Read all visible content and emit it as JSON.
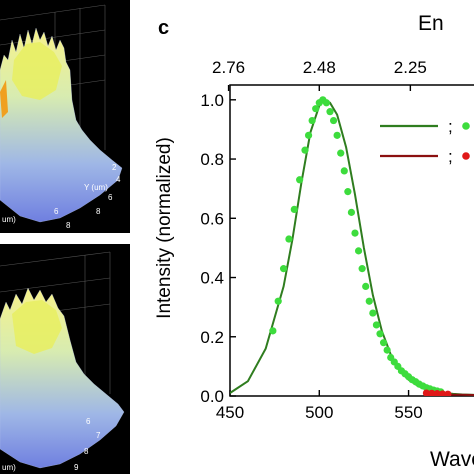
{
  "panel_a": {
    "y_label": "Y (um)",
    "x_label": "um)",
    "y_ticks": [
      "2",
      "4",
      "6",
      "8"
    ],
    "x_ticks": [
      "6",
      "8"
    ]
  },
  "panel_b": {
    "x_label": "um)",
    "x_ticks": [
      "6",
      "7",
      "8",
      "9"
    ]
  },
  "chart_data": {
    "type": "line",
    "panel_label": "c",
    "top_axis_label": "En",
    "xlabel": "Wave",
    "ylabel": "Intensity (normalized)",
    "xlim": [
      450,
      590
    ],
    "ylim": [
      0,
      1.05
    ],
    "x_ticks": [
      450,
      500,
      550
    ],
    "x_tick_labels": [
      "450",
      "500",
      "550"
    ],
    "y_ticks": [
      0.0,
      0.2,
      0.4,
      0.6,
      0.8,
      1.0
    ],
    "y_tick_labels": [
      "0.0",
      "0.2",
      "0.4",
      "0.6",
      "0.8",
      "1.0"
    ],
    "top_ticks_nm": [
      449.2,
      500,
      551
    ],
    "top_tick_labels": [
      "2.76",
      "2.48",
      "2.25"
    ],
    "legend": {
      "placement": "top-right",
      "entries": [
        {
          "line_color": "#2f7d1f",
          "marker_color": "#3ddc3d",
          "separator": ";"
        },
        {
          "line_color": "#8b1010",
          "marker_color": "#e01818",
          "separator": ";"
        }
      ]
    },
    "series": [
      {
        "style": "line",
        "color": "#2f7d1f",
        "x": [
          450,
          460,
          470,
          480,
          485,
          490,
          495,
          500,
          503,
          506,
          510,
          515,
          520,
          525,
          530,
          535,
          540,
          545,
          550,
          555,
          560,
          565,
          570,
          575,
          580,
          590
        ],
        "y": [
          0.01,
          0.05,
          0.16,
          0.37,
          0.53,
          0.72,
          0.89,
          0.98,
          1.0,
          0.99,
          0.95,
          0.84,
          0.68,
          0.5,
          0.34,
          0.22,
          0.14,
          0.085,
          0.055,
          0.035,
          0.022,
          0.014,
          0.01,
          0.007,
          0.005,
          0.003
        ]
      },
      {
        "style": "markers",
        "color": "#3ddc3d",
        "x": [
          474,
          477,
          480,
          483,
          486,
          489,
          492,
          494,
          496,
          498,
          500,
          502,
          504,
          506,
          508,
          510,
          512,
          514,
          516,
          518,
          520,
          522,
          524,
          526,
          528,
          530,
          532,
          534,
          536,
          538,
          540,
          542,
          544,
          546,
          548,
          550,
          552,
          554,
          556,
          558,
          560,
          562,
          564,
          566,
          568
        ],
        "y": [
          0.22,
          0.32,
          0.43,
          0.53,
          0.63,
          0.73,
          0.83,
          0.88,
          0.93,
          0.97,
          0.99,
          1.0,
          0.99,
          0.96,
          0.93,
          0.88,
          0.82,
          0.76,
          0.69,
          0.62,
          0.55,
          0.49,
          0.43,
          0.37,
          0.32,
          0.28,
          0.24,
          0.21,
          0.18,
          0.155,
          0.13,
          0.115,
          0.1,
          0.085,
          0.075,
          0.065,
          0.055,
          0.048,
          0.04,
          0.034,
          0.028,
          0.024,
          0.02,
          0.017,
          0.014
        ]
      },
      {
        "style": "line",
        "color": "#8b1010",
        "x": [
          560,
          570,
          580,
          590
        ],
        "y": [
          0.003,
          0.004,
          0.004,
          0.003
        ]
      },
      {
        "style": "markers",
        "color": "#e01818",
        "x": [
          560,
          563,
          566,
          569,
          572
        ],
        "y": [
          0.01,
          0.009,
          0.008,
          0.007,
          0.006
        ]
      }
    ]
  }
}
